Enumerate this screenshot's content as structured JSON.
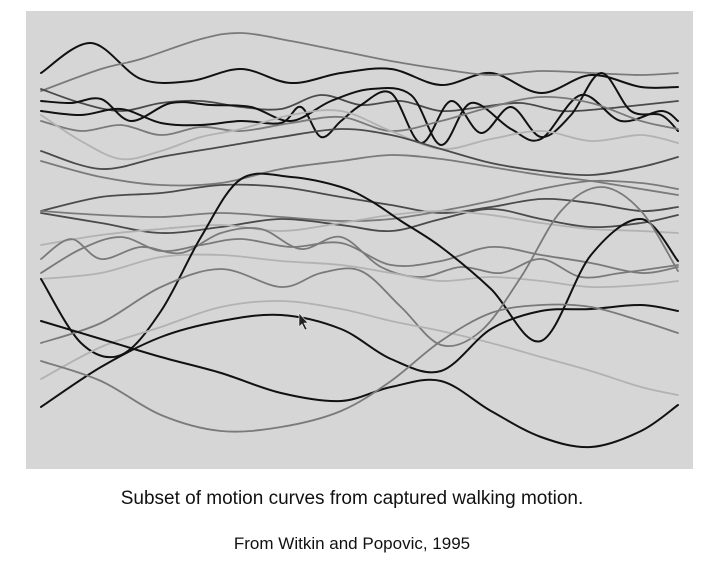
{
  "caption": "Subset of motion curves from captured walking motion.",
  "credit": "From Witkin and Popovic, 1995",
  "colors": {
    "background": "#d6d6d6",
    "dark": "#111111",
    "mid": "#4a4a4a",
    "gray": "#7a7a7a",
    "light": "#b2b2b2"
  },
  "curves": [
    {
      "tone": "dark",
      "x": [
        0,
        50,
        100,
        150,
        200,
        250,
        300,
        350,
        400,
        450,
        500,
        550,
        600,
        637
      ],
      "y": [
        62,
        32,
        68,
        70,
        58,
        72,
        62,
        58,
        74,
        62,
        82,
        64,
        76,
        76
      ]
    },
    {
      "tone": "gray",
      "x": [
        0,
        60,
        100,
        160,
        200,
        250,
        300,
        350,
        400,
        450,
        500,
        550,
        600,
        637
      ],
      "y": [
        80,
        58,
        48,
        28,
        22,
        30,
        40,
        50,
        58,
        64,
        60,
        62,
        64,
        62
      ]
    },
    {
      "tone": "mid",
      "x": [
        0,
        40,
        80,
        120,
        160,
        200,
        240,
        280,
        320,
        360,
        400,
        440,
        480,
        520,
        560,
        600,
        637
      ],
      "y": [
        78,
        92,
        100,
        92,
        90,
        96,
        98,
        84,
        94,
        90,
        100,
        96,
        92,
        100,
        98,
        94,
        90
      ]
    },
    {
      "tone": "dark",
      "x": [
        0,
        30,
        60,
        90,
        130,
        170,
        210,
        250,
        290,
        330,
        370,
        400,
        430,
        470,
        500,
        540,
        580,
        620,
        637
      ],
      "y": [
        90,
        92,
        88,
        110,
        92,
        94,
        96,
        110,
        90,
        78,
        84,
        134,
        92,
        118,
        128,
        84,
        110,
        100,
        110
      ]
    },
    {
      "tone": "dark",
      "x": [
        0,
        40,
        80,
        120,
        160,
        200,
        240,
        260,
        280,
        300,
        320,
        350,
        380,
        410,
        440,
        470,
        500,
        530,
        560,
        590,
        620,
        637
      ],
      "y": [
        100,
        104,
        98,
        112,
        114,
        110,
        112,
        96,
        126,
        110,
        94,
        82,
        132,
        90,
        122,
        96,
        126,
        104,
        62,
        100,
        104,
        120
      ]
    },
    {
      "tone": "gray",
      "x": [
        0,
        40,
        80,
        120,
        160,
        200,
        250,
        300,
        350,
        400,
        450,
        500,
        550,
        600,
        637
      ],
      "y": [
        110,
        120,
        114,
        124,
        116,
        120,
        112,
        106,
        120,
        110,
        96,
        86,
        92,
        110,
        118
      ]
    },
    {
      "tone": "light",
      "x": [
        0,
        40,
        80,
        120,
        160,
        200,
        250,
        300,
        350,
        400,
        450,
        500,
        550,
        600,
        637
      ],
      "y": [
        104,
        130,
        148,
        140,
        126,
        118,
        104,
        100,
        120,
        138,
        128,
        120,
        130,
        124,
        132
      ]
    },
    {
      "tone": "mid",
      "x": [
        0,
        60,
        120,
        180,
        240,
        300,
        350,
        400,
        450,
        500,
        550,
        600,
        637
      ],
      "y": [
        140,
        158,
        146,
        136,
        126,
        118,
        124,
        138,
        152,
        160,
        164,
        156,
        146
      ]
    },
    {
      "tone": "gray",
      "x": [
        0,
        60,
        120,
        180,
        240,
        300,
        350,
        400,
        450,
        500,
        550,
        600,
        637
      ],
      "y": [
        150,
        166,
        174,
        172,
        158,
        150,
        144,
        148,
        156,
        164,
        170,
        178,
        184
      ]
    },
    {
      "tone": "mid",
      "x": [
        0,
        60,
        120,
        180,
        240,
        300,
        350,
        400,
        450,
        500,
        550,
        600,
        637
      ],
      "y": [
        200,
        186,
        182,
        174,
        176,
        186,
        194,
        202,
        196,
        188,
        192,
        200,
        196
      ]
    },
    {
      "tone": "gray",
      "x": [
        0,
        60,
        120,
        180,
        240,
        300,
        350,
        400,
        450,
        500,
        550,
        600,
        637
      ],
      "y": [
        200,
        204,
        206,
        202,
        206,
        210,
        208,
        200,
        190,
        178,
        170,
        172,
        178
      ]
    },
    {
      "tone": "mid",
      "x": [
        0,
        60,
        120,
        180,
        240,
        300,
        350,
        400,
        450,
        500,
        550,
        600,
        637
      ],
      "y": [
        202,
        212,
        222,
        216,
        208,
        214,
        220,
        208,
        198,
        208,
        216,
        212,
        204
      ]
    },
    {
      "tone": "light",
      "x": [
        0,
        60,
        120,
        180,
        240,
        300,
        350,
        400,
        450,
        500,
        550,
        600,
        637
      ],
      "y": [
        234,
        224,
        218,
        214,
        220,
        212,
        204,
        200,
        204,
        212,
        218,
        220,
        222
      ]
    },
    {
      "tone": "gray",
      "x": [
        0,
        40,
        80,
        120,
        160,
        200,
        250,
        300,
        350,
        400,
        450,
        500,
        550,
        600,
        637
      ],
      "y": [
        262,
        238,
        226,
        240,
        234,
        228,
        236,
        232,
        254,
        250,
        236,
        244,
        252,
        262,
        256
      ]
    },
    {
      "tone": "gray",
      "x": [
        0,
        30,
        60,
        100,
        140,
        180,
        220,
        260,
        300,
        340,
        380,
        420,
        460,
        500,
        540,
        580,
        637
      ],
      "y": [
        248,
        228,
        248,
        236,
        242,
        222,
        218,
        238,
        226,
        256,
        266,
        256,
        262,
        248,
        266,
        262,
        254
      ]
    },
    {
      "tone": "light",
      "x": [
        0,
        60,
        120,
        180,
        240,
        300,
        350,
        400,
        450,
        500,
        550,
        600,
        637
      ],
      "y": [
        268,
        262,
        246,
        244,
        250,
        254,
        262,
        270,
        266,
        270,
        276,
        274,
        270
      ]
    },
    {
      "tone": "dark",
      "x": [
        0,
        40,
        80,
        120,
        160,
        200,
        250,
        300,
        330,
        360,
        400,
        450,
        500,
        550,
        600,
        637
      ],
      "y": [
        268,
        332,
        344,
        300,
        226,
        168,
        166,
        176,
        190,
        210,
        236,
        278,
        330,
        244,
        208,
        250
      ]
    },
    {
      "tone": "gray",
      "x": [
        0,
        60,
        120,
        180,
        240,
        280,
        320,
        360,
        400,
        440,
        480,
        520,
        560,
        600,
        637
      ],
      "y": [
        332,
        312,
        276,
        258,
        276,
        262,
        260,
        296,
        334,
        320,
        266,
        200,
        176,
        200,
        260
      ]
    },
    {
      "tone": "light",
      "x": [
        0,
        60,
        120,
        180,
        240,
        300,
        350,
        400,
        450,
        500,
        550,
        600,
        637
      ],
      "y": [
        368,
        336,
        316,
        296,
        290,
        298,
        310,
        320,
        332,
        346,
        360,
        376,
        384
      ]
    },
    {
      "tone": "dark",
      "x": [
        0,
        60,
        120,
        180,
        240,
        300,
        350,
        400,
        450,
        500,
        550,
        600,
        637
      ],
      "y": [
        396,
        356,
        326,
        310,
        304,
        318,
        348,
        360,
        318,
        300,
        298,
        294,
        300
      ]
    },
    {
      "tone": "dark",
      "x": [
        0,
        60,
        120,
        180,
        240,
        300,
        350,
        400,
        450,
        500,
        550,
        600,
        637
      ],
      "y": [
        310,
        328,
        346,
        362,
        382,
        390,
        376,
        370,
        400,
        426,
        436,
        420,
        394
      ]
    },
    {
      "tone": "gray",
      "x": [
        0,
        60,
        120,
        180,
        240,
        300,
        350,
        400,
        450,
        500,
        550,
        600,
        637
      ],
      "y": [
        350,
        370,
        404,
        420,
        416,
        400,
        370,
        330,
        302,
        294,
        296,
        310,
        322
      ]
    }
  ]
}
